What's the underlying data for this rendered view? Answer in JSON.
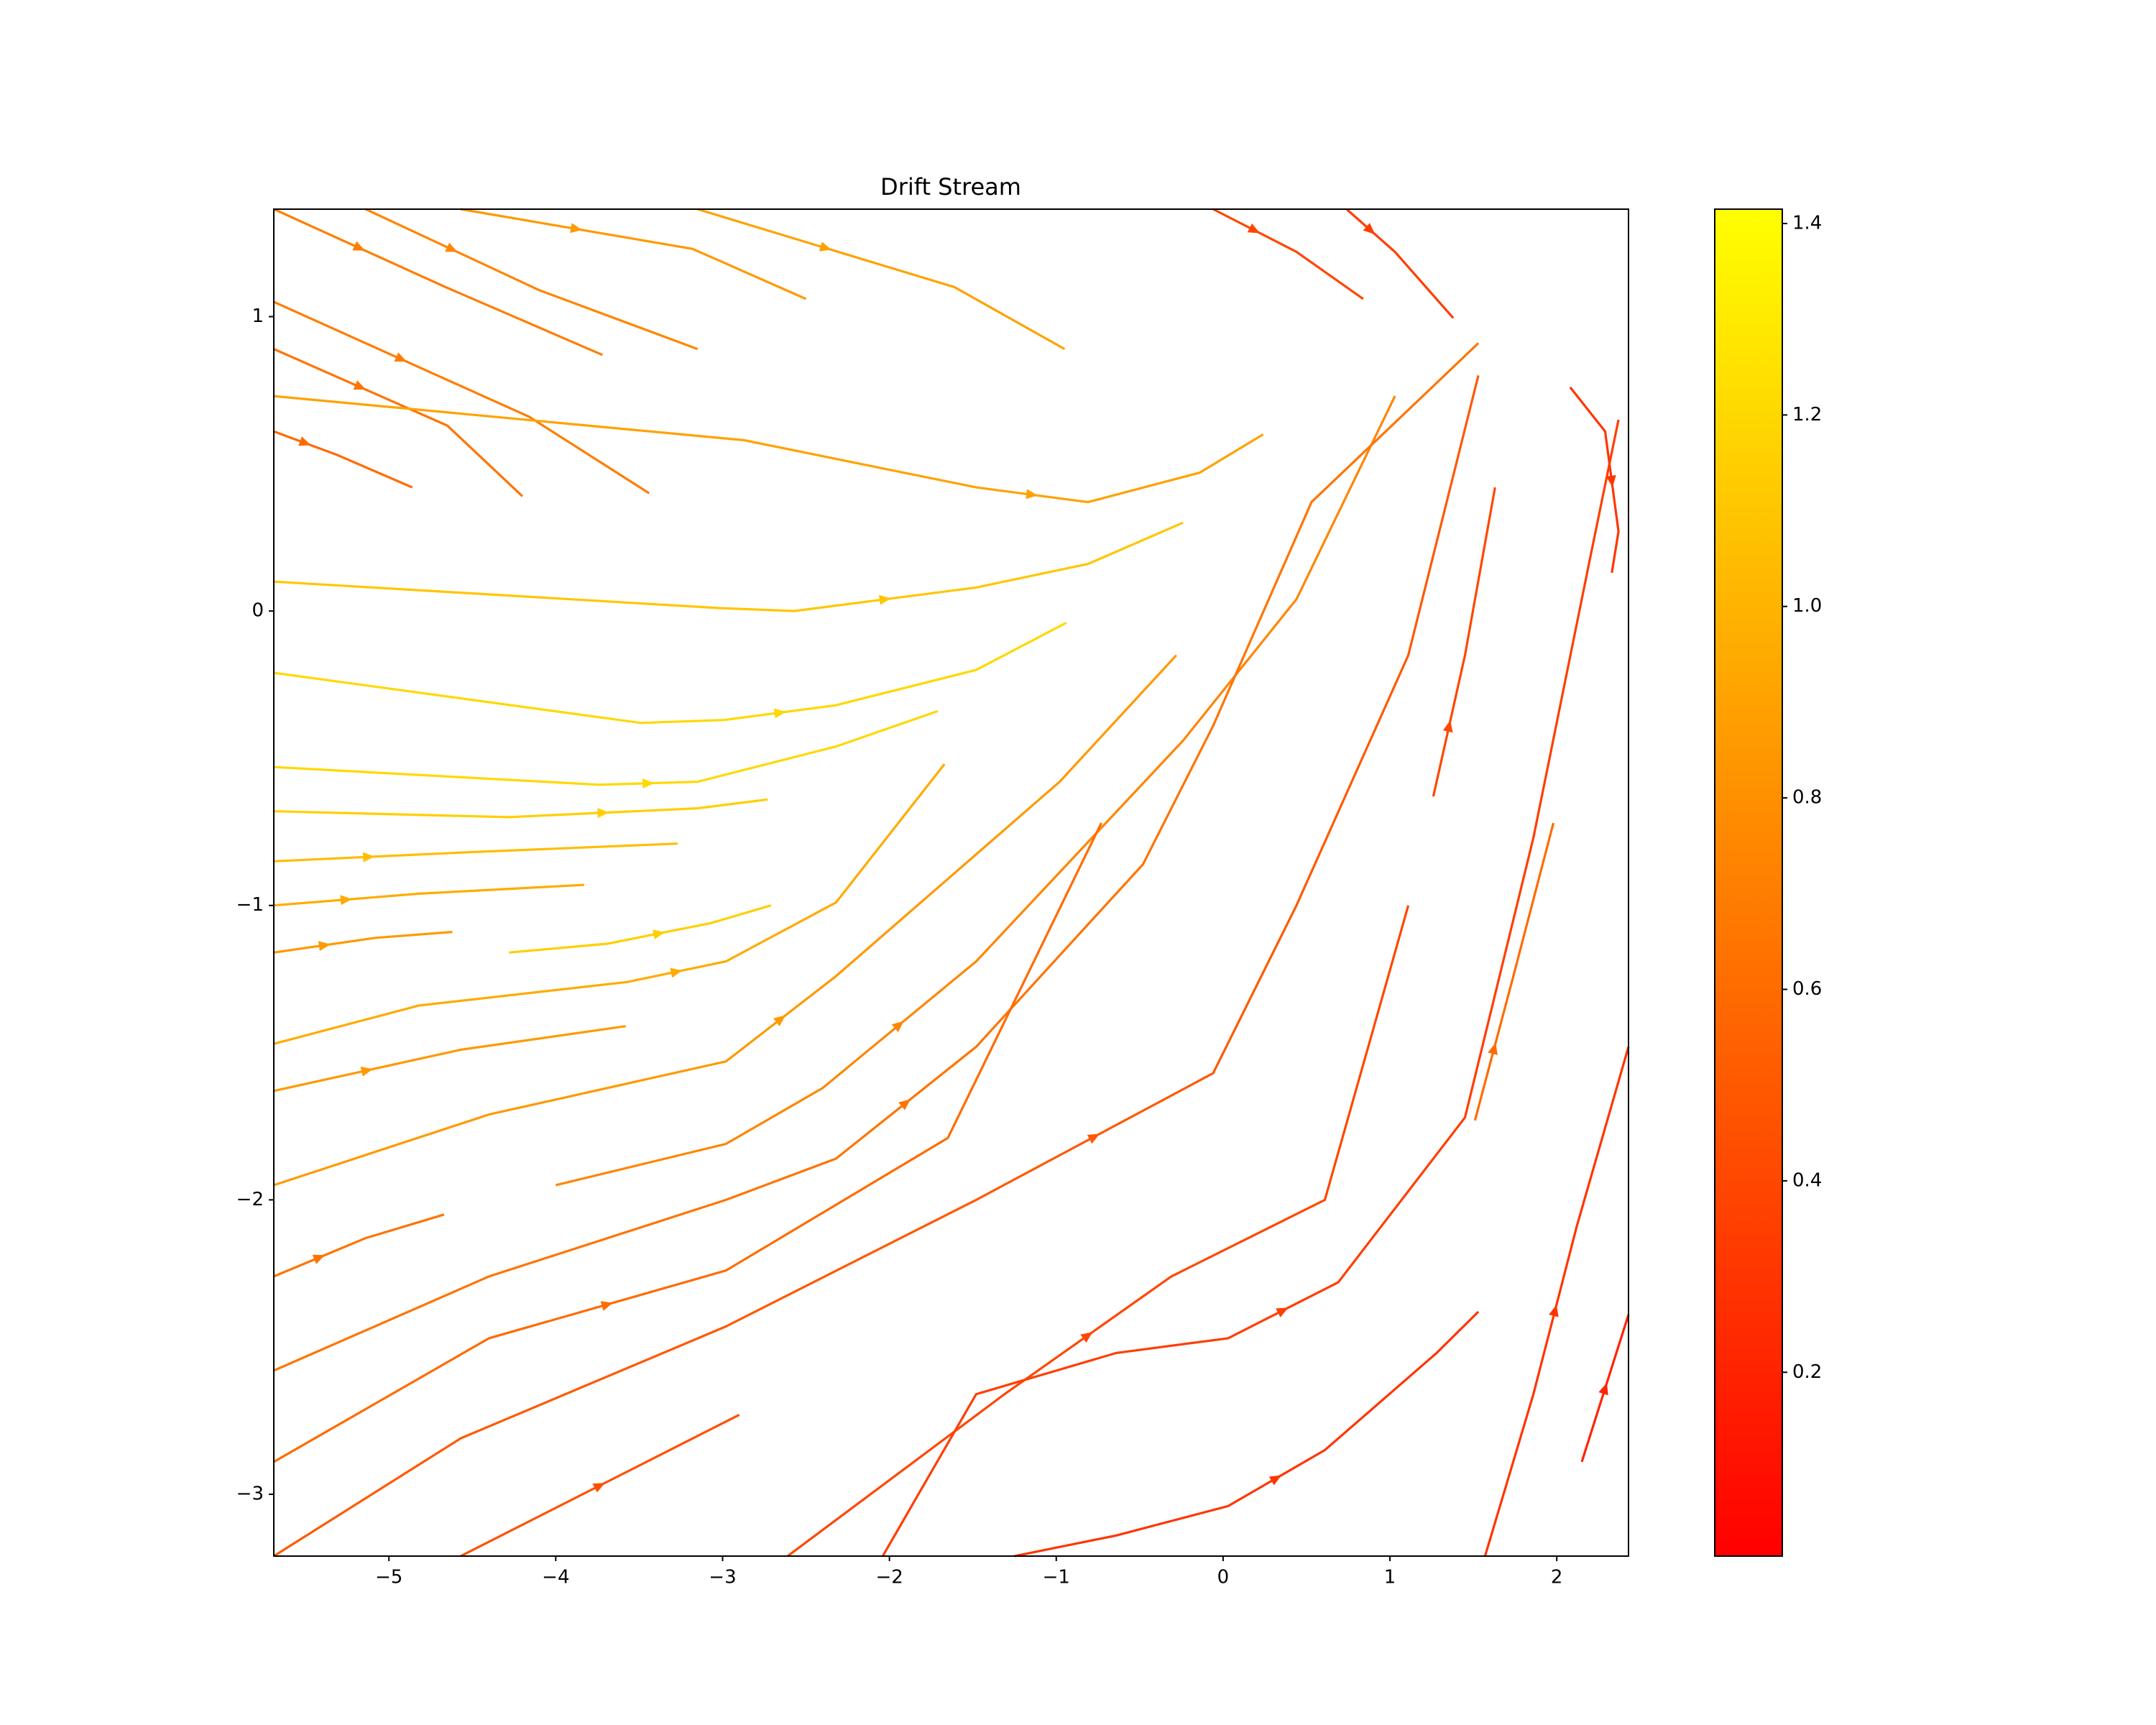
{
  "chart_data": {
    "type": "streamplot",
    "title": "Drift Stream",
    "xlim": [
      -5.69,
      2.43
    ],
    "ylim": [
      -3.21,
      1.365
    ],
    "xticks": [
      {
        "value": -5,
        "label": "−5"
      },
      {
        "value": -4,
        "label": "−4"
      },
      {
        "value": -3,
        "label": "−3"
      },
      {
        "value": -2,
        "label": "−2"
      },
      {
        "value": -1,
        "label": "−1"
      },
      0,
      1,
      2
    ],
    "yticks": [
      {
        "value": -3,
        "label": "−3"
      },
      {
        "value": -2,
        "label": "−2"
      },
      {
        "value": -1,
        "label": "−1"
      },
      0,
      1
    ],
    "clim": [
      0.008,
      1.415
    ],
    "cticks": [
      0.2,
      0.4,
      0.6,
      0.8,
      {
        "value": 1,
        "label": "1.0"
      },
      1.2,
      1.4
    ],
    "colormap_colors": [
      "#ff0000",
      "#ffff00"
    ],
    "streamlines": [
      {
        "x": [
          -5.69,
          -4.66,
          -3.72
        ],
        "y": [
          1.365,
          1.1,
          0.87
        ],
        "speed": 0.7
      },
      {
        "x": [
          -5.14,
          -4.1,
          -3.15
        ],
        "y": [
          1.365,
          1.09,
          0.89
        ],
        "speed": 0.75
      },
      {
        "x": [
          -4.57,
          -3.18,
          -2.5
        ],
        "y": [
          1.365,
          1.23,
          1.06
        ],
        "speed": 0.85
      },
      {
        "x": [
          -3.15,
          -1.61,
          -0.95
        ],
        "y": [
          1.365,
          1.1,
          0.89
        ],
        "speed": 0.9
      },
      {
        "x": [
          -5.69,
          -4.16,
          -3.44
        ],
        "y": [
          1.05,
          0.66,
          0.4
        ],
        "speed": 0.7
      },
      {
        "x": [
          -5.69,
          -4.65,
          -4.2
        ],
        "y": [
          0.89,
          0.63,
          0.39
        ],
        "speed": 0.65
      },
      {
        "x": [
          -5.69,
          -5.31,
          -4.86
        ],
        "y": [
          0.61,
          0.53,
          0.42
        ],
        "speed": 0.6
      },
      {
        "x": [
          -5.69,
          -2.87,
          -1.48,
          -0.81,
          -0.14,
          0.24
        ],
        "y": [
          0.73,
          0.58,
          0.42,
          0.37,
          0.47,
          0.6
        ],
        "speed": 0.9
      },
      {
        "x": [
          -5.69,
          -3.02,
          -2.57,
          -1.48,
          -0.81,
          -0.24
        ],
        "y": [
          0.1,
          0.01,
          0.0,
          0.08,
          0.16,
          0.3
        ],
        "speed": 1.1
      },
      {
        "x": [
          -5.69,
          -3.49,
          -2.99,
          -2.32,
          -1.48,
          -0.94
        ],
        "y": [
          -0.21,
          -0.38,
          -0.37,
          -0.32,
          -0.2,
          -0.04
        ],
        "speed": 1.2
      },
      {
        "x": [
          -5.69,
          -3.74,
          -3.15,
          -2.32,
          -1.71
        ],
        "y": [
          -0.53,
          -0.59,
          -0.58,
          -0.46,
          -0.34
        ],
        "speed": 1.2
      },
      {
        "x": [
          -5.69,
          -4.28,
          -3.15,
          -2.73
        ],
        "y": [
          -0.68,
          -0.7,
          -0.67,
          -0.64
        ],
        "speed": 1.15
      },
      {
        "x": [
          -5.69,
          -4.55,
          -3.27
        ],
        "y": [
          -0.85,
          -0.82,
          -0.79
        ],
        "speed": 1.05
      },
      {
        "x": [
          -5.69,
          -4.82,
          -3.83
        ],
        "y": [
          -1.0,
          -0.96,
          -0.93
        ],
        "speed": 0.95
      },
      {
        "x": [
          -5.69,
          -5.08,
          -4.62
        ],
        "y": [
          -1.16,
          -1.11,
          -1.09
        ],
        "speed": 0.85
      },
      {
        "x": [
          -4.28,
          -3.69,
          -3.07,
          -2.71
        ],
        "y": [
          -1.16,
          -1.13,
          -1.06,
          -1.0
        ],
        "speed": 1.15
      },
      {
        "x": [
          -5.69,
          -4.82,
          -3.57,
          -2.98,
          -2.32,
          -1.67
        ],
        "y": [
          -1.47,
          -1.34,
          -1.26,
          -1.19,
          -0.99,
          -0.52
        ],
        "speed": 0.95
      },
      {
        "x": [
          -5.69,
          -4.57,
          -3.58
        ],
        "y": [
          -1.63,
          -1.49,
          -1.41
        ],
        "speed": 0.85
      },
      {
        "x": [
          -5.69,
          -4.4,
          -2.98,
          -2.32,
          -0.98,
          -0.28
        ],
        "y": [
          -1.95,
          -1.71,
          -1.53,
          -1.24,
          -0.58,
          -0.15
        ],
        "speed": 0.85
      },
      {
        "x": [
          -4.0,
          -2.98,
          -2.4,
          -1.48,
          -0.24,
          0.44,
          1.03
        ],
        "y": [
          -1.95,
          -1.81,
          -1.62,
          -1.19,
          -0.44,
          0.04,
          0.73
        ],
        "speed": 0.75
      },
      {
        "x": [
          -5.69,
          -4.4,
          -2.98,
          -2.32,
          -1.48,
          -0.48,
          -0.06,
          0.53,
          1.53
        ],
        "y": [
          -2.58,
          -2.26,
          -2.0,
          -1.86,
          -1.48,
          -0.86,
          -0.39,
          0.37,
          0.91
        ],
        "speed": 0.65
      },
      {
        "x": [
          -5.69,
          -4.4,
          -2.98,
          -1.65,
          -0.73
        ],
        "y": [
          -2.89,
          -2.47,
          -2.24,
          -1.79,
          -0.72
        ],
        "speed": 0.6
      },
      {
        "x": [
          -5.69,
          -4.57,
          -2.98,
          -1.48,
          -0.06,
          0.44,
          1.11,
          1.53
        ],
        "y": [
          -3.21,
          -2.81,
          -2.43,
          -2.0,
          -1.57,
          -1.0,
          -0.15,
          0.8
        ],
        "speed": 0.5
      },
      {
        "x": [
          -4.57,
          -2.9
        ],
        "y": [
          -3.21,
          -2.73
        ],
        "speed": 0.45
      },
      {
        "x": [
          -2.61,
          -1.31,
          -0.31,
          0.61,
          1.11
        ],
        "y": [
          -3.21,
          -2.66,
          -2.26,
          -2.0,
          -1.0
        ],
        "speed": 0.4
      },
      {
        "x": [
          -2.04,
          -1.48,
          -0.64,
          0.03,
          0.69,
          1.45,
          1.86,
          2.2,
          2.37
        ],
        "y": [
          -3.21,
          -2.66,
          -2.52,
          -2.47,
          -2.28,
          -1.72,
          -0.77,
          0.18,
          0.65
        ],
        "speed": 0.35
      },
      {
        "x": [
          -1.25,
          -0.64,
          0.03,
          0.61,
          1.28,
          1.53
        ],
        "y": [
          -3.21,
          -3.14,
          -3.04,
          -2.85,
          -2.52,
          -2.38
        ],
        "speed": 0.3
      },
      {
        "x": [
          1.57,
          1.86,
          2.12,
          2.43
        ],
        "y": [
          -3.21,
          -2.66,
          -2.09,
          -1.48
        ],
        "speed": 0.3
      },
      {
        "x": [
          2.15,
          2.43
        ],
        "y": [
          -2.89,
          -2.39
        ],
        "speed": 0.2
      },
      {
        "x": [
          -0.06,
          0.44,
          0.84
        ],
        "y": [
          1.365,
          1.22,
          1.06
        ],
        "speed": 0.4
      },
      {
        "x": [
          0.74,
          1.03,
          1.38
        ],
        "y": [
          1.365,
          1.22,
          0.995
        ],
        "speed": 0.35
      },
      {
        "x": [
          1.26,
          1.45,
          1.63
        ],
        "y": [
          -0.63,
          -0.15,
          0.42
        ],
        "speed": 0.4
      },
      {
        "x": [
          2.08,
          2.29,
          2.37,
          2.33
        ],
        "y": [
          0.76,
          0.61,
          0.27,
          0.13
        ],
        "speed": 0.3
      },
      {
        "x": [
          1.51,
          1.74,
          1.98
        ],
        "y": [
          -1.73,
          -1.24,
          -0.72
        ],
        "speed": 0.6
      },
      {
        "x": [
          -5.69,
          -5.14,
          -4.67
        ],
        "y": [
          -2.26,
          -2.13,
          -2.05
        ],
        "speed": 0.65
      }
    ]
  }
}
